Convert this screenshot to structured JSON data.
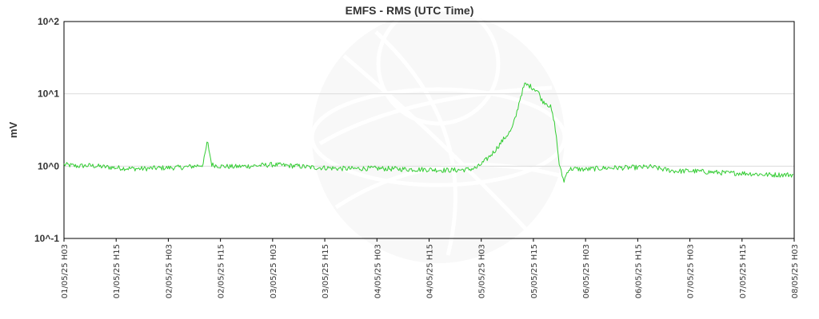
{
  "chart_data": {
    "type": "line",
    "title": "EMFS - RMS (UTC Time)",
    "xlabel": "",
    "ylabel": "mV",
    "y_scale": "log",
    "ylim": [
      0.1,
      100
    ],
    "y_ticks": [
      {
        "label": "10^2",
        "value": 100
      },
      {
        "label": "10^1",
        "value": 10
      },
      {
        "label": "10^0",
        "value": 1
      },
      {
        "label": "10^-1",
        "value": 0.1
      }
    ],
    "x_tick_labels": [
      "01/05/25 H03",
      "01/05/25 H15",
      "02/05/25 H03",
      "02/05/25 H15",
      "03/05/25 H03",
      "03/05/25 H15",
      "04/05/25 H03",
      "04/05/25 H15",
      "05/05/25 H03",
      "05/05/25 H15",
      "06/05/25 H03",
      "06/05/25 H15",
      "07/05/25 H03",
      "07/05/25 H15",
      "08/05/25 H03"
    ],
    "xlim": [
      "01/05/25 H03",
      "08/05/25 H03"
    ],
    "grid": "horizontal",
    "line_color": "#33cc33",
    "series": [
      {
        "points": [
          [
            "01/05/25 H03",
            1.05
          ],
          [
            "01/05/25 H06",
            1.0
          ],
          [
            "01/05/25 H09",
            1.02
          ],
          [
            "01/05/25 H12",
            0.98
          ],
          [
            "01/05/25 H15",
            0.95
          ],
          [
            "01/05/25 H18",
            0.93
          ],
          [
            "01/05/25 H21",
            0.92
          ],
          [
            "02/05/25 H00",
            0.94
          ],
          [
            "02/05/25 H03",
            0.95
          ],
          [
            "02/05/25 H06",
            0.96
          ],
          [
            "02/05/25 H09",
            1.0
          ],
          [
            "02/05/25 H11",
            1.05
          ],
          [
            "02/05/25 H12",
            2.2
          ],
          [
            "02/05/25 H13",
            1.05
          ],
          [
            "02/05/25 H15",
            1.0
          ],
          [
            "02/05/25 H18",
            0.98
          ],
          [
            "02/05/25 H21",
            1.0
          ],
          [
            "03/05/25 H00",
            1.02
          ],
          [
            "03/05/25 H03",
            1.05
          ],
          [
            "03/05/25 H06",
            1.02
          ],
          [
            "03/05/25 H09",
            1.0
          ],
          [
            "03/05/25 H12",
            0.96
          ],
          [
            "03/05/25 H15",
            0.95
          ],
          [
            "03/05/25 H18",
            0.93
          ],
          [
            "03/05/25 H21",
            0.92
          ],
          [
            "04/05/25 H00",
            0.93
          ],
          [
            "04/05/25 H03",
            0.93
          ],
          [
            "04/05/25 H06",
            0.92
          ],
          [
            "04/05/25 H09",
            0.91
          ],
          [
            "04/05/25 H12",
            0.9
          ],
          [
            "04/05/25 H15",
            0.9
          ],
          [
            "04/05/25 H18",
            0.88
          ],
          [
            "04/05/25 H21",
            0.88
          ],
          [
            "05/05/25 H00",
            0.9
          ],
          [
            "05/05/25 H02",
            0.95
          ],
          [
            "05/05/25 H04",
            1.2
          ],
          [
            "05/05/25 H06",
            1.6
          ],
          [
            "05/05/25 H08",
            2.3
          ],
          [
            "05/05/25 H10",
            3.2
          ],
          [
            "05/05/25 H11",
            5.0
          ],
          [
            "05/05/25 H12",
            9.0
          ],
          [
            "05/05/25 H13",
            13.5
          ],
          [
            "05/05/25 H14",
            13.0
          ],
          [
            "05/05/25 H15",
            12.0
          ],
          [
            "05/05/25 H16",
            11.0
          ],
          [
            "05/05/25 H17",
            8.0
          ],
          [
            "05/05/25 H18",
            7.5
          ],
          [
            "05/05/25 H19",
            6.5
          ],
          [
            "05/05/25 H20",
            3.5
          ],
          [
            "05/05/25 H21",
            1.0
          ],
          [
            "05/05/25 H22",
            0.62
          ],
          [
            "05/05/25 H23",
            0.9
          ],
          [
            "06/05/25 H00",
            0.92
          ],
          [
            "06/05/25 H03",
            0.9
          ],
          [
            "06/05/25 H06",
            0.93
          ],
          [
            "06/05/25 H09",
            0.95
          ],
          [
            "06/05/25 H12",
            0.95
          ],
          [
            "06/05/25 H15",
            0.96
          ],
          [
            "06/05/25 H18",
            0.98
          ],
          [
            "06/05/25 H21",
            0.9
          ],
          [
            "07/05/25 H00",
            0.85
          ],
          [
            "07/05/25 H03",
            0.86
          ],
          [
            "07/05/25 H06",
            0.84
          ],
          [
            "07/05/25 H09",
            0.82
          ],
          [
            "07/05/25 H12",
            0.8
          ],
          [
            "07/05/25 H15",
            0.8
          ],
          [
            "07/05/25 H18",
            0.78
          ],
          [
            "07/05/25 H21",
            0.76
          ],
          [
            "08/05/25 H00",
            0.76
          ],
          [
            "08/05/25 H03",
            0.76
          ]
        ]
      }
    ]
  }
}
